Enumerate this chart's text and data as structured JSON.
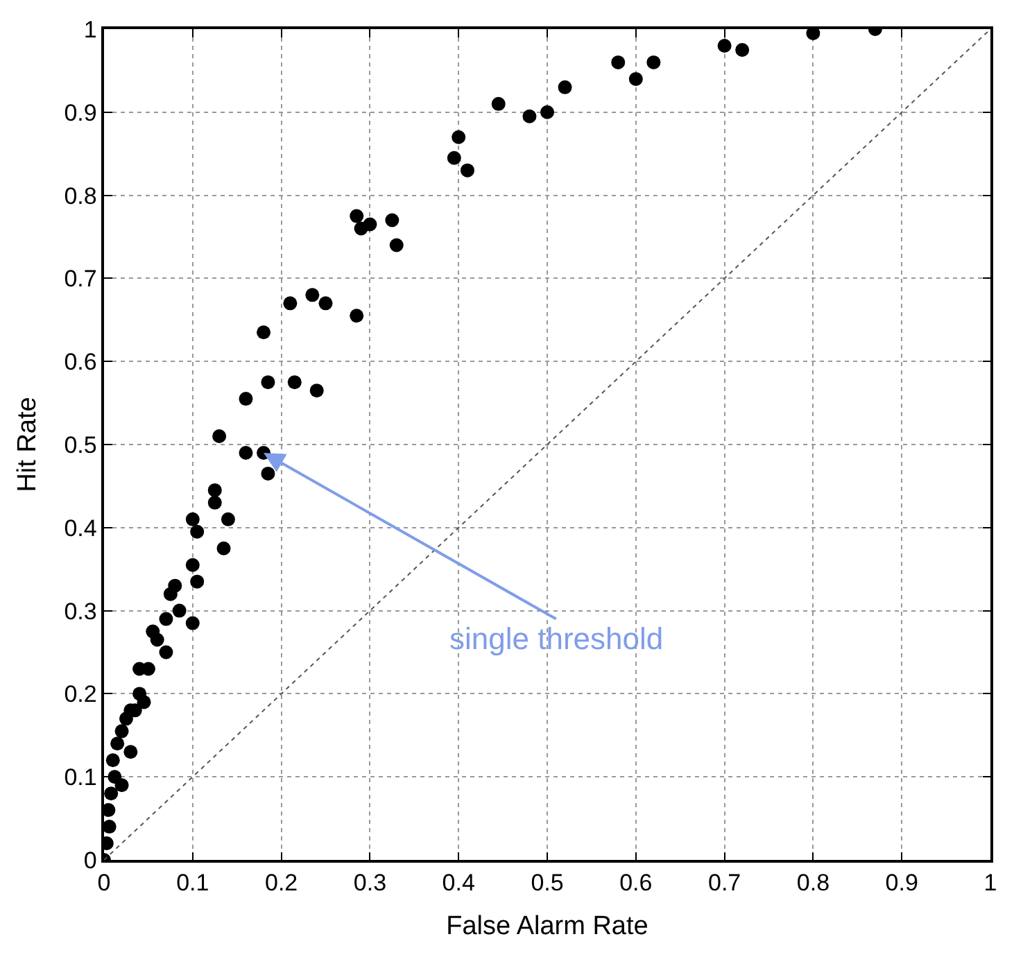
{
  "chart_data": {
    "type": "scatter",
    "xlabel": "False Alarm Rate",
    "ylabel": "Hit Rate",
    "xlim": [
      0,
      1
    ],
    "ylim": [
      0,
      1
    ],
    "xticks": [
      0,
      0.1,
      0.2,
      0.3,
      0.4,
      0.5,
      0.6,
      0.7,
      0.8,
      0.9,
      1
    ],
    "yticks": [
      0,
      0.1,
      0.2,
      0.3,
      0.4,
      0.5,
      0.6,
      0.7,
      0.8,
      0.9,
      1
    ],
    "grid": true,
    "legend": false,
    "marker": "circle",
    "series": [
      {
        "color": "#000000",
        "x": [
          0.87,
          0.8,
          0.72,
          0.7,
          0.62,
          0.6,
          0.58,
          0.52,
          0.5,
          0.48,
          0.445,
          0.41,
          0.4,
          0.395,
          0.33,
          0.325,
          0.3,
          0.29,
          0.285,
          0.285,
          0.25,
          0.235,
          0.21,
          0.18,
          0.24,
          0.215,
          0.185,
          0.16,
          0.13,
          0.18,
          0.16,
          0.185,
          0.125,
          0.125,
          0.14,
          0.135,
          0.1,
          0.105,
          0.1,
          0.105,
          0.08,
          0.075,
          0.085,
          0.1,
          0.07,
          0.055,
          0.06,
          0.07,
          0.05,
          0.04,
          0.04,
          0.045,
          0.035,
          0.03,
          0.025,
          0.02,
          0.015,
          0.03,
          0.01,
          0.012,
          0.008,
          0.02,
          0.005,
          0.006,
          0.003,
          0.0
        ],
        "values": [
          1.0,
          0.995,
          0.975,
          0.98,
          0.96,
          0.94,
          0.96,
          0.93,
          0.9,
          0.895,
          0.91,
          0.83,
          0.87,
          0.845,
          0.74,
          0.77,
          0.765,
          0.76,
          0.775,
          0.655,
          0.67,
          0.68,
          0.67,
          0.635,
          0.565,
          0.575,
          0.575,
          0.555,
          0.51,
          0.49,
          0.49,
          0.465,
          0.445,
          0.43,
          0.41,
          0.375,
          0.41,
          0.395,
          0.355,
          0.335,
          0.33,
          0.32,
          0.3,
          0.285,
          0.29,
          0.275,
          0.265,
          0.25,
          0.23,
          0.23,
          0.2,
          0.19,
          0.18,
          0.18,
          0.17,
          0.155,
          0.14,
          0.13,
          0.12,
          0.1,
          0.08,
          0.09,
          0.06,
          0.04,
          0.02,
          0.0
        ]
      },
      {
        "type": "line",
        "color": "#555555",
        "line_style": "dotted",
        "marker": "none",
        "x": [
          0,
          1
        ],
        "values": [
          0,
          1
        ]
      }
    ],
    "annotations": [
      {
        "text": "single threshold",
        "x": 0.18,
        "y": 0.49
      }
    ]
  }
}
